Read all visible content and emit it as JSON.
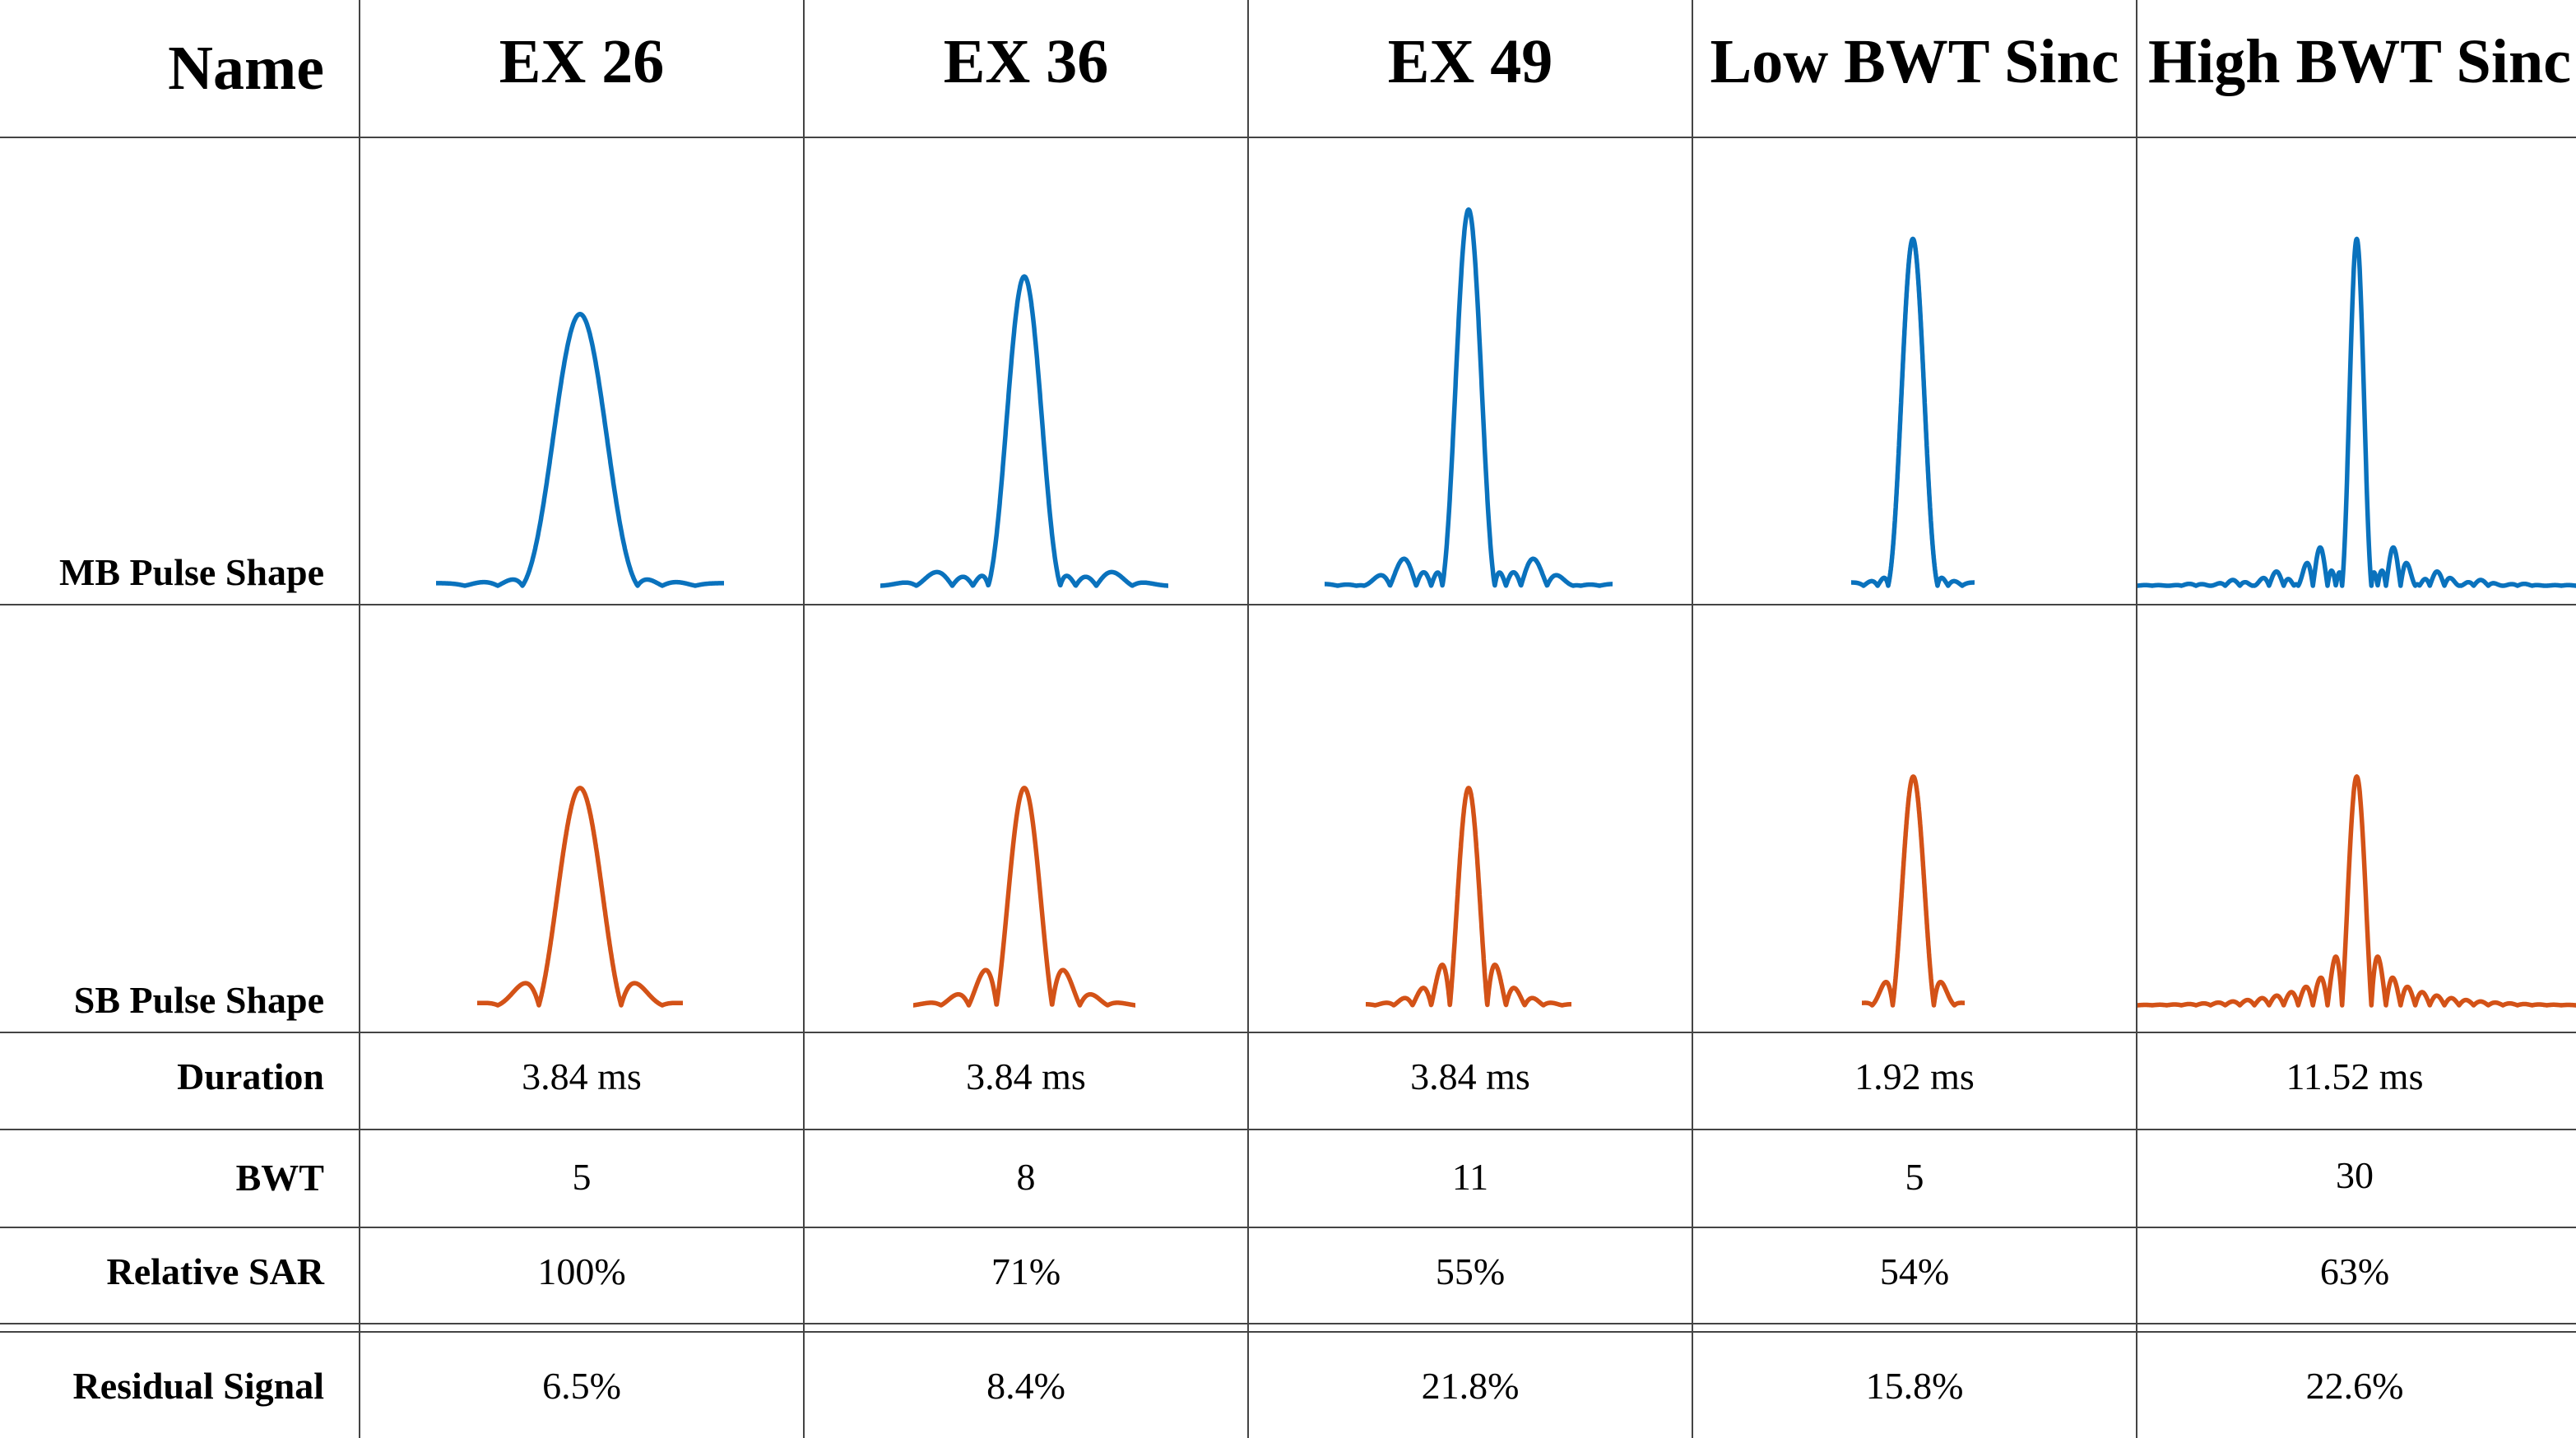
{
  "header": {
    "name_label": "Name",
    "columns": [
      "EX 26",
      "EX 36",
      "EX 49",
      "Low BWT Sinc",
      "High BWT Sinc"
    ]
  },
  "rows": {
    "mb_pulse_shape": "MB Pulse Shape",
    "sb_pulse_shape": "SB Pulse Shape",
    "duration": {
      "label": "Duration",
      "values": [
        "3.84 ms",
        "3.84 ms",
        "3.84 ms",
        "1.92 ms",
        "11.52 ms"
      ]
    },
    "bwt": {
      "label": "BWT",
      "values": [
        "5",
        "8",
        "11",
        "5",
        "30"
      ]
    },
    "relative_sar": {
      "label": "Relative SAR",
      "values": [
        "100%",
        "71%",
        "55%",
        "54%",
        "63%"
      ]
    },
    "residual_signal": {
      "label": "Residual Signal",
      "values": [
        "6.5%",
        "8.4%",
        "21.8%",
        "15.8%",
        "22.6%"
      ]
    }
  },
  "pulses": [
    {
      "column": "EX 26",
      "bwt": 5,
      "mb_peak": 0.65,
      "sb_peak": 0.95
    },
    {
      "column": "EX 36",
      "bwt": 8,
      "mb_peak": 0.74,
      "sb_peak": 0.95
    },
    {
      "column": "EX 49",
      "bwt": 11,
      "mb_peak": 0.9,
      "sb_peak": 0.95
    },
    {
      "column": "Low BWT Sinc",
      "bwt": 5,
      "mb_peak": 0.83,
      "sb_peak": 1.0
    },
    {
      "column": "High BWT Sinc",
      "bwt": 30,
      "mb_peak": 0.83,
      "sb_peak": 1.0
    }
  ],
  "colors": {
    "mb_curve": "#0a72bd",
    "sb_curve": "#d35217",
    "grid": "#444444"
  }
}
